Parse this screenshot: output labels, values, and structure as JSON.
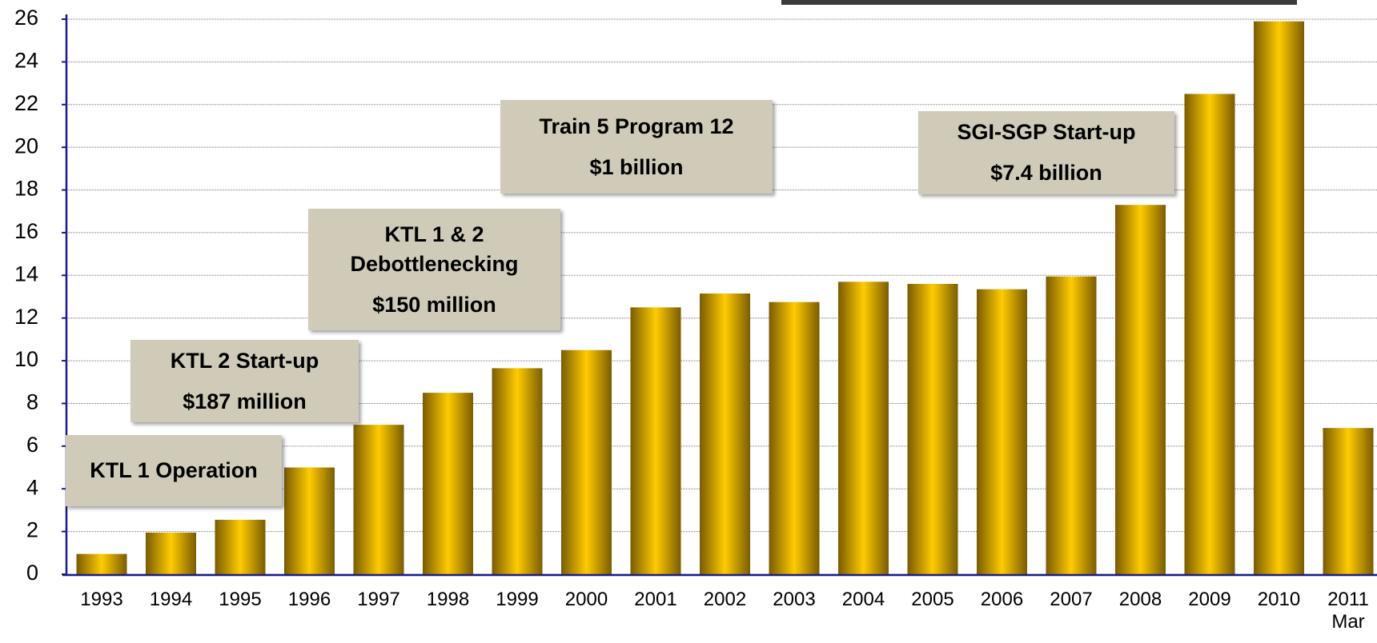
{
  "chart_data": {
    "type": "bar",
    "categories": [
      "1993",
      "1994",
      "1995",
      "1996",
      "1997",
      "1998",
      "1999",
      "2000",
      "2001",
      "2002",
      "2003",
      "2004",
      "2005",
      "2006",
      "2007",
      "2008",
      "2009",
      "2010",
      "2011 Mar"
    ],
    "values": [
      0.95,
      1.95,
      2.55,
      5.0,
      7.0,
      8.5,
      9.65,
      10.5,
      12.5,
      13.15,
      12.75,
      13.7,
      13.6,
      13.35,
      13.95,
      17.3,
      22.5,
      25.9,
      6.85
    ],
    "color": "#ffcc00",
    "ylim": [
      0,
      26
    ],
    "yticks": [
      0,
      2,
      4,
      6,
      8,
      10,
      12,
      14,
      16,
      18,
      20,
      22,
      24,
      26
    ],
    "grid": true,
    "annotations": [
      {
        "lines": [
          "KTL 1 Operation"
        ]
      },
      {
        "lines": [
          "KTL 2 Start-up",
          "$187 million"
        ]
      },
      {
        "lines": [
          "KTL 1 & 2 Debottlenecking",
          "$150 million"
        ]
      },
      {
        "lines": [
          "Train 5 Program 12",
          "$1 billion"
        ]
      },
      {
        "lines": [
          "SGI-SGP Start-up",
          "$7.4 billion"
        ]
      }
    ]
  }
}
